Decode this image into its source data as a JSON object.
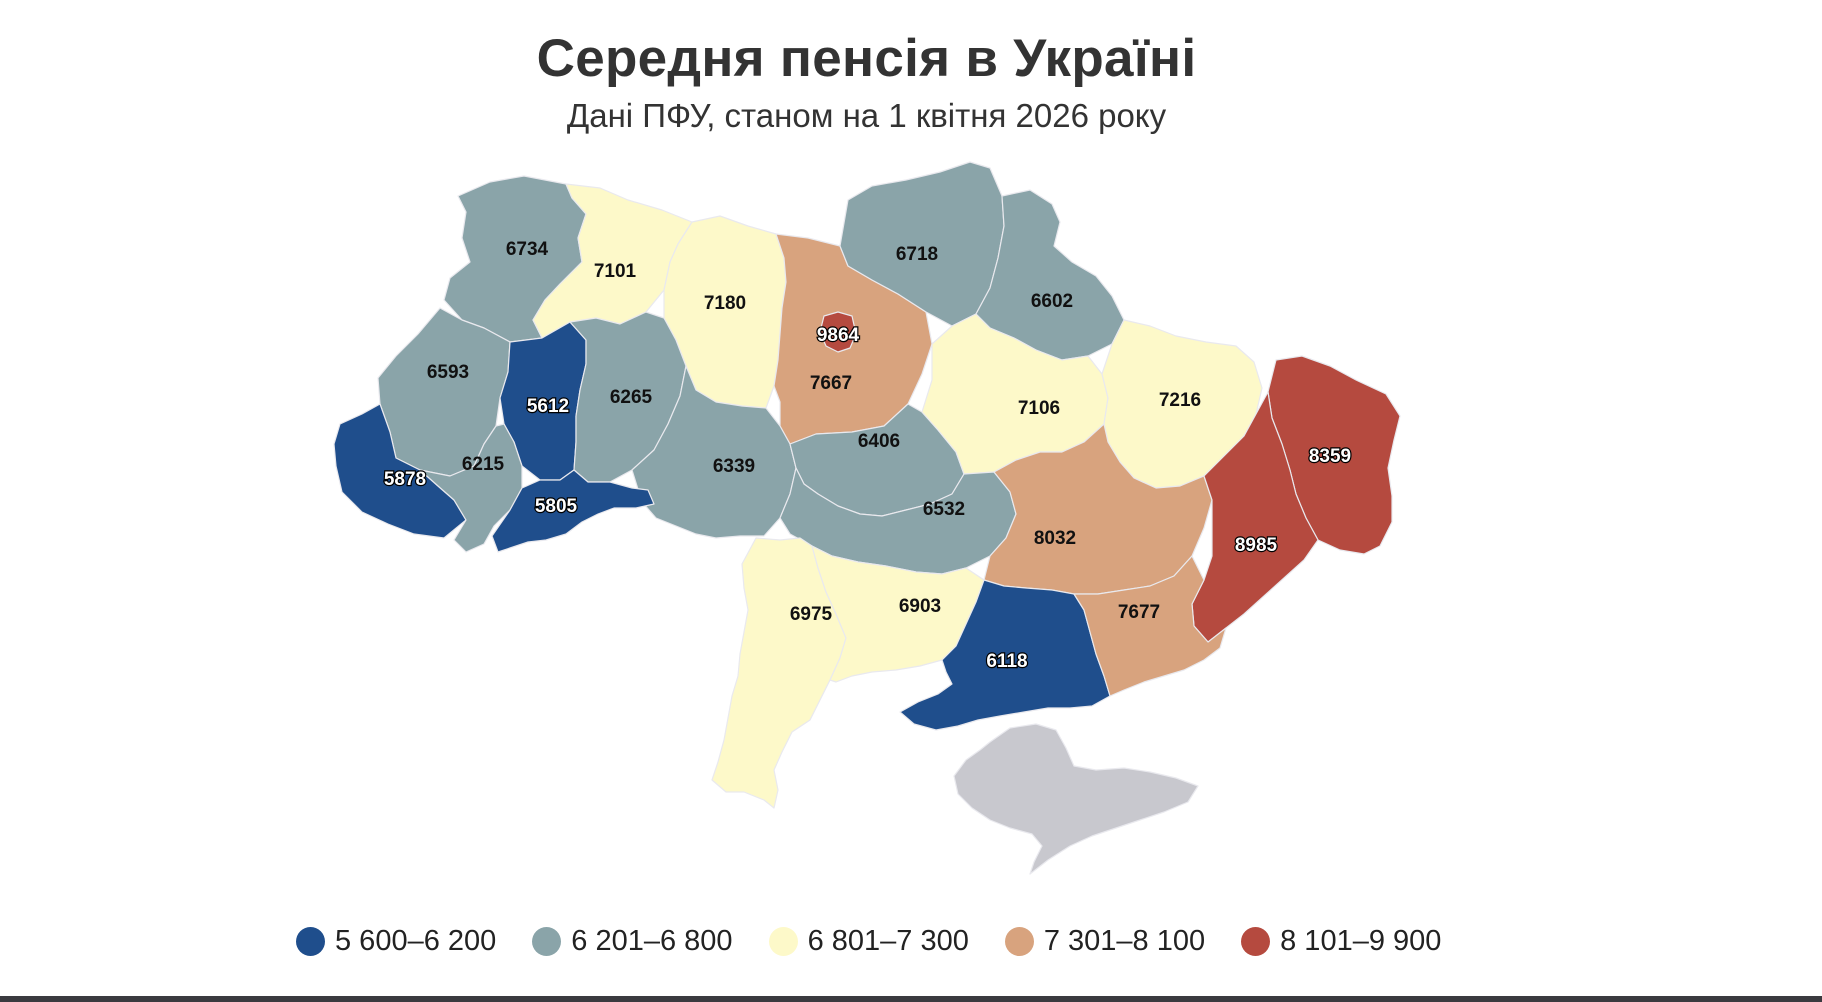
{
  "title": "Середня пенсія в Україні",
  "subtitle": "Дані ПФУ, станом на 1 квітня 2026 року",
  "legend": [
    {
      "label": "5 600–6 200",
      "color": "#1f4e8c",
      "min": 5600,
      "max": 6200
    },
    {
      "label": "6 201–6 800",
      "color": "#8aa4a9",
      "min": 6201,
      "max": 6800
    },
    {
      "label": "6 801–7 300",
      "color": "#fdf9c9",
      "min": 6801,
      "max": 7300
    },
    {
      "label": "7 301–8 100",
      "color": "#d8a37e",
      "min": 7301,
      "max": 8100
    },
    {
      "label": "8 101–9 900",
      "color": "#b54a3f",
      "min": 8101,
      "max": 9900
    }
  ],
  "no_data_color": "#c8c8ce",
  "regions": [
    {
      "id": "volyn",
      "value": 6734
    },
    {
      "id": "rivne",
      "value": 7101
    },
    {
      "id": "zhytomyr",
      "value": 7180
    },
    {
      "id": "kyiv-oblast",
      "value": 7667
    },
    {
      "id": "kyiv-city",
      "value": 9864
    },
    {
      "id": "chernihiv",
      "value": 6718
    },
    {
      "id": "sumy",
      "value": 6602
    },
    {
      "id": "lviv",
      "value": 6593
    },
    {
      "id": "ternopil",
      "value": 5612
    },
    {
      "id": "khmelnytskyi",
      "value": 6265
    },
    {
      "id": "vinnytsia",
      "value": 6339
    },
    {
      "id": "cherkasy",
      "value": 6406
    },
    {
      "id": "poltava",
      "value": 7106
    },
    {
      "id": "kharkiv",
      "value": 7216
    },
    {
      "id": "luhansk",
      "value": 8359
    },
    {
      "id": "zakarpattia",
      "value": 5878
    },
    {
      "id": "ivano-frankivsk",
      "value": 6215
    },
    {
      "id": "chernivtsi",
      "value": 5805
    },
    {
      "id": "kirovohrad",
      "value": 6532
    },
    {
      "id": "dnipropetrovsk",
      "value": 8032
    },
    {
      "id": "donetsk",
      "value": 8985
    },
    {
      "id": "odesa",
      "value": 6975
    },
    {
      "id": "mykolaiv",
      "value": 6903
    },
    {
      "id": "kherson",
      "value": 6118
    },
    {
      "id": "zaporizhzhia",
      "value": 7677
    },
    {
      "id": "crimea",
      "value": null
    }
  ]
}
